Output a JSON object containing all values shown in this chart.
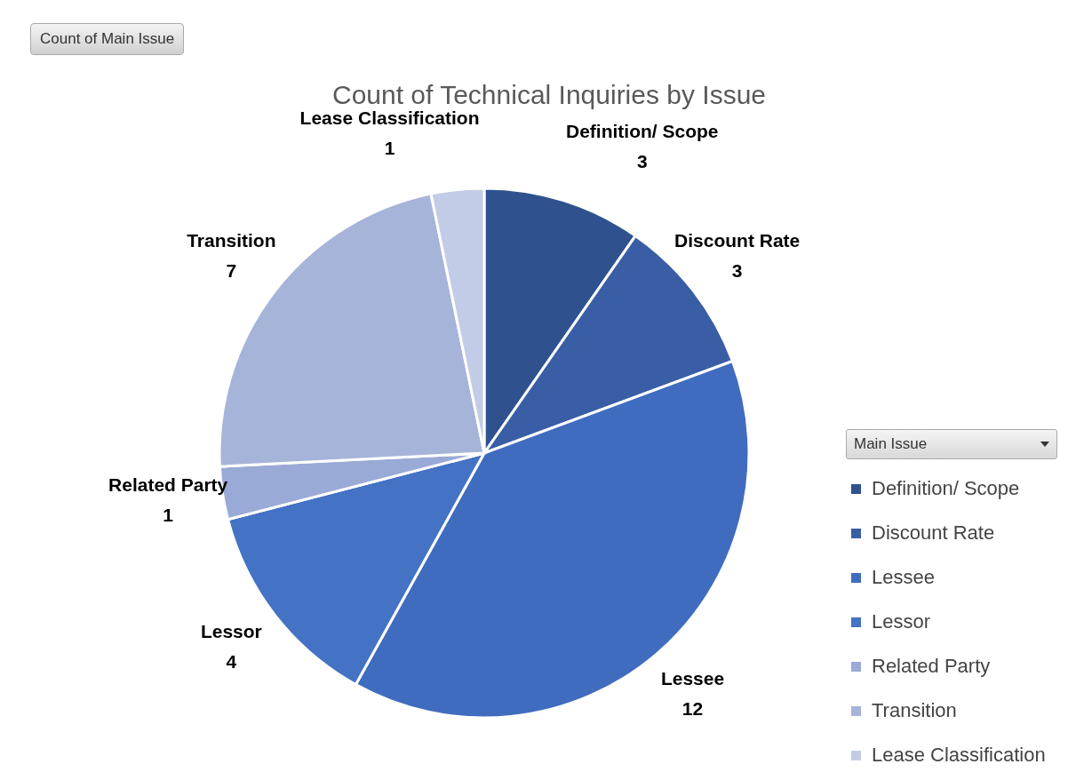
{
  "chart_data": {
    "type": "pie",
    "title": "Count of Technical Inquiries by Issue",
    "categories": [
      "Definition/ Scope",
      "Discount Rate",
      "Lessee",
      "Lessor",
      "Related Party",
      "Transition",
      "Lease Classification"
    ],
    "values": [
      3,
      3,
      12,
      4,
      1,
      7,
      1
    ],
    "colors": [
      "#2f528f",
      "#3a5ea6",
      "#3f6cbf",
      "#4472c4",
      "#9aaad6",
      "#a7b4d9",
      "#c3cce6"
    ],
    "data_labels": true,
    "legend": "right",
    "legend_title": "Main Issue",
    "annotations": [
      "Count of Main Issue"
    ]
  }
}
